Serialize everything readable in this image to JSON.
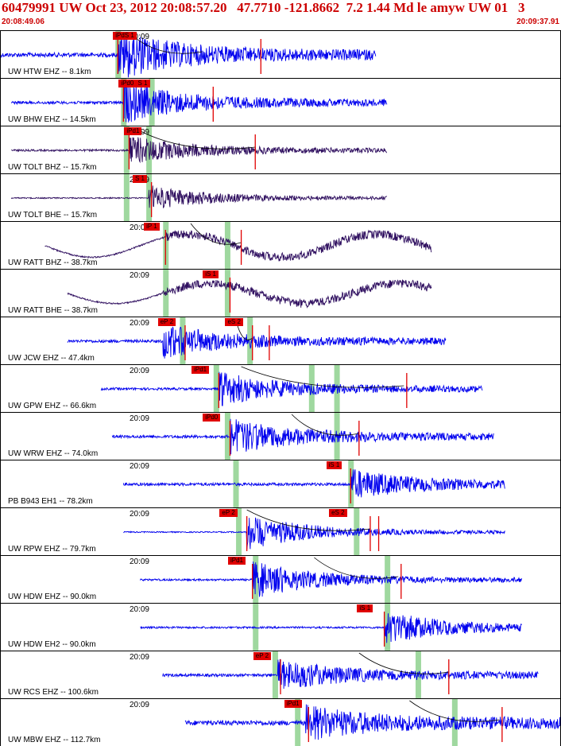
{
  "header": {
    "title": "60479991 UW Oct 23, 2012 20:08:57.20   47.7710 -121.8662  7.2 1.44 Md le amyw UW 01   3",
    "start_time": "20:08:49.06",
    "end_time": "20:09:37.91"
  },
  "colors": {
    "trace_blue": "#0000ee",
    "trace_dark": "#301060",
    "pick_red": "#e00000",
    "window_green": "#9fd89f",
    "header_red": "#cc0000"
  },
  "panels": [
    {
      "station": "UW HTW EHZ -- 8.1km",
      "time_label": "20:09",
      "time_frac": 0.245,
      "color": "blue",
      "wave": "noise",
      "amp": 0.18,
      "start": 0.0,
      "end": 0.67,
      "onset": 0.21,
      "burst": 1.0,
      "picks": [
        {
          "label": "iPdS 1",
          "t": 0.21
        }
      ],
      "greens": [
        0.21
      ],
      "redlines": [
        0.21,
        0.465
      ],
      "curve": [
        0.23,
        0.36
      ]
    },
    {
      "station": "UW BHW EHZ -- 14.5km",
      "time_label": "",
      "time_frac": 0.0,
      "color": "blue",
      "wave": "noise",
      "amp": 0.12,
      "start": 0.02,
      "end": 0.69,
      "onset": 0.22,
      "burst": 0.85,
      "picks": [
        {
          "label": "iPd0",
          "t": 0.22
        },
        {
          "label": "S 1",
          "t": 0.25
        }
      ],
      "greens": [
        0.22,
        0.27
      ],
      "redlines": [
        0.22,
        0.38
      ],
      "curve": []
    },
    {
      "station": "UW TOLT BHZ -- 15.7km",
      "time_label": "20:09",
      "time_frac": 0.245,
      "color": "dark",
      "wave": "noise",
      "amp": 0.08,
      "start": 0.02,
      "end": 0.69,
      "onset": 0.23,
      "burst": 0.6,
      "picks": [
        {
          "label": "iPd1",
          "t": 0.23
        }
      ],
      "greens": [
        0.225,
        0.265
      ],
      "redlines": [
        0.23,
        0.455
      ],
      "curve": [
        0.24,
        0.455
      ]
    },
    {
      "station": "UW TOLT BHE -- 15.7km",
      "time_label": "20:09",
      "time_frac": 0.245,
      "color": "dark",
      "wave": "noise",
      "amp": 0.05,
      "start": 0.02,
      "end": 0.69,
      "onset": 0.265,
      "burst": 0.55,
      "picks": [
        {
          "label": "S 1",
          "t": 0.245
        }
      ],
      "greens": [
        0.225,
        0.265
      ],
      "redlines": [
        0.27
      ],
      "curve": []
    },
    {
      "station": "UW RATT BHZ -- 38.7km",
      "time_label": "20:09",
      "time_frac": 0.245,
      "color": "dark",
      "wave": "sine",
      "amp": 0.4,
      "start": 0.08,
      "end": 0.77,
      "onset": 0.295,
      "burst": 0.45,
      "picks": [
        {
          "label": "iP 1",
          "t": 0.265
        }
      ],
      "greens": [
        0.295,
        0.405
      ],
      "redlines": [
        0.295,
        0.43
      ],
      "curve": [
        0.34,
        0.43
      ]
    },
    {
      "station": "UW RATT BHE -- 38.7km",
      "time_label": "20:09",
      "time_frac": 0.245,
      "color": "dark",
      "wave": "sine",
      "amp": 0.35,
      "start": 0.12,
      "end": 0.77,
      "onset": 0.29,
      "burst": 0.4,
      "picks": [
        {
          "label": "iS 1",
          "t": 0.37
        }
      ],
      "greens": [
        0.295,
        0.405
      ],
      "redlines": [
        0.41
      ],
      "curve": []
    },
    {
      "station": "UW JCW EHZ -- 47.4km",
      "time_label": "20:09",
      "time_frac": 0.245,
      "color": "blue",
      "wave": "noise",
      "amp": 0.12,
      "start": 0.12,
      "end": 0.795,
      "onset": 0.29,
      "burst": 0.7,
      "picks": [
        {
          "label": "eP 2",
          "t": 0.29
        },
        {
          "label": "eS 2",
          "t": 0.41
        }
      ],
      "greens": [
        0.325,
        0.445
      ],
      "redlines": [
        0.33,
        0.45,
        0.48
      ],
      "curve": [
        0.42,
        0.45
      ]
    },
    {
      "station": "UW GPW EHZ -- 66.6km",
      "time_label": "20:09",
      "time_frac": 0.245,
      "color": "blue",
      "wave": "noise",
      "amp": 0.1,
      "start": 0.18,
      "end": 0.86,
      "onset": 0.39,
      "burst": 0.7,
      "picks": [
        {
          "label": "iPd1",
          "t": 0.35
        }
      ],
      "greens": [
        0.385,
        0.555,
        0.6
      ],
      "redlines": [
        0.39,
        0.725
      ],
      "curve": [
        0.43,
        0.72
      ]
    },
    {
      "station": "UW WRW EHZ -- 74.0km",
      "time_label": "20:09",
      "time_frac": 0.245,
      "color": "blue",
      "wave": "noise",
      "amp": 0.12,
      "start": 0.2,
      "end": 0.88,
      "onset": 0.41,
      "burst": 0.75,
      "picks": [
        {
          "label": "iPd0",
          "t": 0.37
        }
      ],
      "greens": [
        0.405,
        0.6
      ],
      "redlines": [
        0.41,
        0.64
      ],
      "curve": [
        0.52,
        0.64
      ]
    },
    {
      "station": "PB B943 EH1 -- 78.2km",
      "time_label": "20:09",
      "time_frac": 0.245,
      "color": "blue",
      "wave": "noise",
      "amp": 0.12,
      "start": 0.22,
      "end": 0.9,
      "onset": 0.625,
      "burst": 0.6,
      "picks": [
        {
          "label": "iS 1",
          "t": 0.59
        }
      ],
      "greens": [
        0.42,
        0.625
      ],
      "redlines": [
        0.625
      ],
      "curve": []
    },
    {
      "station": "UW RPW EHZ -- 79.7km",
      "time_label": "20:09",
      "time_frac": 0.245,
      "color": "blue",
      "wave": "noise",
      "amp": 0.05,
      "start": 0.22,
      "end": 0.9,
      "onset": 0.44,
      "burst": 0.8,
      "picks": [
        {
          "label": "eP 2",
          "t": 0.4
        },
        {
          "label": "eS 2",
          "t": 0.595
        }
      ],
      "greens": [
        0.425,
        0.635
      ],
      "redlines": [
        0.44,
        0.66,
        0.675
      ],
      "curve": [
        0.44,
        0.66
      ]
    },
    {
      "station": "UW HDW EHZ -- 90.0km",
      "time_label": "20:09",
      "time_frac": 0.245,
      "color": "blue",
      "wave": "noise",
      "amp": 0.08,
      "start": 0.25,
      "end": 0.93,
      "onset": 0.45,
      "burst": 0.8,
      "picks": [
        {
          "label": "iPd1",
          "t": 0.415
        }
      ],
      "greens": [
        0.455,
        0.69
      ],
      "redlines": [
        0.45,
        0.715
      ],
      "curve": [
        0.56,
        0.71
      ]
    },
    {
      "station": "UW HDW EH2 -- 90.0km",
      "time_label": "20:09",
      "time_frac": 0.245,
      "color": "blue",
      "wave": "noise",
      "amp": 0.08,
      "start": 0.25,
      "end": 0.93,
      "onset": 0.685,
      "burst": 0.7,
      "picks": [
        {
          "label": "iS 1",
          "t": 0.645
        }
      ],
      "greens": [
        0.455,
        0.69
      ],
      "redlines": [
        0.685
      ],
      "curve": []
    },
    {
      "station": "UW RCS EHZ -- 100.6km",
      "time_label": "20:09",
      "time_frac": 0.245,
      "color": "blue",
      "wave": "noise",
      "amp": 0.12,
      "start": 0.29,
      "end": 0.96,
      "onset": 0.495,
      "burst": 0.65,
      "picks": [
        {
          "label": "eP 2",
          "t": 0.46
        }
      ],
      "greens": [
        0.49,
        0.745
      ],
      "redlines": [
        0.5,
        0.8
      ],
      "curve": [
        0.64,
        0.8
      ]
    },
    {
      "station": "UW MBW EHZ -- 112.7km",
      "time_label": "20:09",
      "time_frac": 0.245,
      "color": "blue",
      "wave": "noise",
      "amp": 0.2,
      "start": 0.33,
      "end": 1.0,
      "onset": 0.545,
      "burst": 0.65,
      "picks": [
        {
          "label": "iPd1",
          "t": 0.515
        }
      ],
      "greens": [
        0.53,
        0.81
      ],
      "redlines": [
        0.55,
        0.895
      ],
      "curve": [
        0.73,
        0.89
      ]
    }
  ]
}
